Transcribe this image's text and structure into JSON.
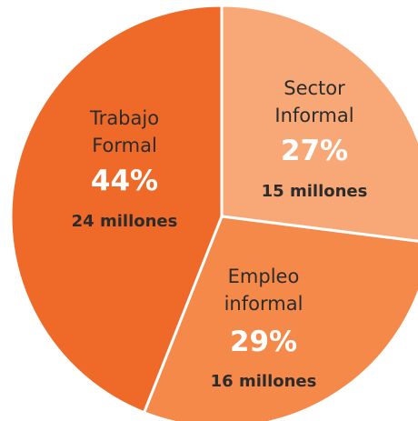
{
  "chart_data": {
    "type": "pie",
    "slices": [
      {
        "name_lines": [
          "Sector",
          "Informal"
        ],
        "percent_label": "27%",
        "value": 27,
        "count_label": "15 millones",
        "color": "#f8a877"
      },
      {
        "name_lines": [
          "Empleo",
          "informal"
        ],
        "percent_label": "29%",
        "value": 29,
        "count_label": "16 millones",
        "color": "#f4894a"
      },
      {
        "name_lines": [
          "Trabajo",
          "Formal"
        ],
        "percent_label": "44%",
        "value": 44,
        "count_label": "24 millones",
        "color": "#ef6a28"
      }
    ],
    "title": "",
    "legend": "none"
  }
}
